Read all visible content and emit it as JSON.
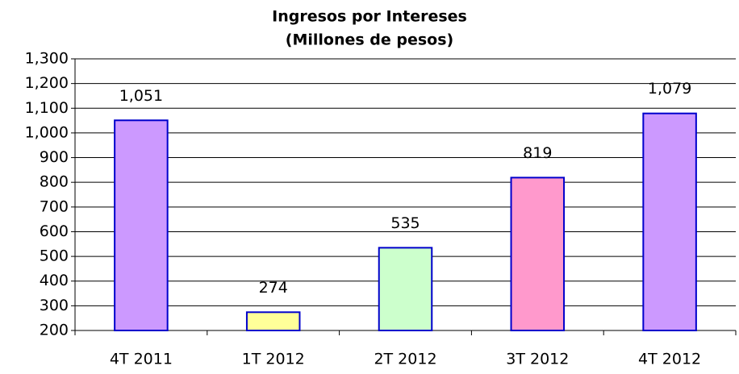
{
  "chart_data": {
    "type": "bar",
    "title": "Ingresos por Intereses",
    "subtitle": "(Millones de pesos)",
    "categories": [
      "4T 2011",
      "1T 2012",
      "2T 2012",
      "3T 2012",
      "4T 2012"
    ],
    "values": [
      1051,
      274,
      535,
      819,
      1079
    ],
    "value_labels": [
      "1,051",
      "274",
      "535",
      "819",
      "1,079"
    ],
    "colors": [
      "#cc99ff",
      "#ffff99",
      "#ccffcc",
      "#ff99cc",
      "#cc99ff"
    ],
    "edge_color": "#0000cc",
    "ylim": [
      200,
      1300
    ],
    "yticks": [
      200,
      300,
      400,
      500,
      600,
      700,
      800,
      900,
      {
        "value": 1000,
        "label": "1,000"
      },
      {
        "value": 1100,
        "label": "1,100"
      },
      {
        "value": 1200,
        "label": "1,200"
      },
      {
        "value": 1300,
        "label": "1,300"
      }
    ],
    "grid": true
  }
}
